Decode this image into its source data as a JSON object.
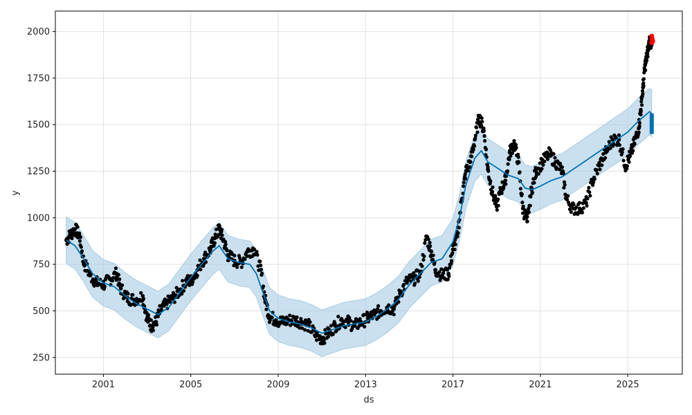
{
  "chart_data": {
    "type": "line",
    "title": "",
    "xlabel": "ds",
    "ylabel": "y",
    "xlim": [
      1998.8,
      2027.5
    ],
    "ylim": [
      160,
      2110
    ],
    "grid": true,
    "legend": "none",
    "x_ticks": [
      {
        "label": "2001",
        "value": 2001
      },
      {
        "label": "2005",
        "value": 2005
      },
      {
        "label": "2009",
        "value": 2009
      },
      {
        "label": "2013",
        "value": 2013
      },
      {
        "label": "2017",
        "value": 2017
      },
      {
        "label": "2021",
        "value": 2021
      },
      {
        "label": "2025",
        "value": 2025
      }
    ],
    "y_ticks": [
      {
        "label": "250",
        "value": 250
      },
      {
        "label": "500",
        "value": 500
      },
      {
        "label": "750",
        "value": 750
      },
      {
        "label": "1000",
        "value": 1000
      },
      {
        "label": "1250",
        "value": 1250
      },
      {
        "label": "1500",
        "value": 1500
      },
      {
        "label": "1750",
        "value": 1750
      },
      {
        "label": "2000",
        "value": 2000
      }
    ],
    "colors": {
      "observed": "#000000",
      "forecast_line": "#0072B2",
      "uncertainty_band": "#a6cbe3",
      "future_forecast": "#0072B2",
      "actual_future": "#ff0000",
      "grid": "#e0e0e0"
    },
    "series": [
      {
        "role": "observed",
        "points": [
          [
            1999.3,
            880
          ],
          [
            1999.5,
            910
          ],
          [
            1999.7,
            940
          ],
          [
            1999.9,
            905
          ],
          [
            2000.1,
            760
          ],
          [
            2000.4,
            690
          ],
          [
            2000.7,
            650
          ],
          [
            2001.0,
            640
          ],
          [
            2001.3,
            670
          ],
          [
            2001.6,
            700
          ],
          [
            2001.8,
            620
          ],
          [
            2002.1,
            570
          ],
          [
            2002.4,
            560
          ],
          [
            2002.8,
            580
          ],
          [
            2003.0,
            460
          ],
          [
            2003.2,
            420
          ],
          [
            2003.4,
            440
          ],
          [
            2003.6,
            500
          ],
          [
            2003.9,
            540
          ],
          [
            2004.2,
            570
          ],
          [
            2004.5,
            610
          ],
          [
            2004.8,
            660
          ],
          [
            2005.0,
            660
          ],
          [
            2005.3,
            720
          ],
          [
            2005.6,
            780
          ],
          [
            2005.9,
            830
          ],
          [
            2006.1,
            890
          ],
          [
            2006.3,
            940
          ],
          [
            2006.5,
            880
          ],
          [
            2006.7,
            800
          ],
          [
            2007.0,
            770
          ],
          [
            2007.3,
            760
          ],
          [
            2007.6,
            820
          ],
          [
            2007.9,
            830
          ],
          [
            2008.2,
            720
          ],
          [
            2008.4,
            560
          ],
          [
            2008.6,
            470
          ],
          [
            2008.9,
            450
          ],
          [
            2009.2,
            440
          ],
          [
            2009.5,
            450
          ],
          [
            2009.8,
            450
          ],
          [
            2010.1,
            440
          ],
          [
            2010.4,
            420
          ],
          [
            2010.7,
            370
          ],
          [
            2011.0,
            350
          ],
          [
            2011.3,
            380
          ],
          [
            2011.6,
            420
          ],
          [
            2011.9,
            450
          ],
          [
            2012.2,
            440
          ],
          [
            2012.5,
            420
          ],
          [
            2012.8,
            440
          ],
          [
            2013.1,
            460
          ],
          [
            2013.4,
            480
          ],
          [
            2013.7,
            500
          ],
          [
            2014.0,
            520
          ],
          [
            2014.3,
            510
          ],
          [
            2014.6,
            600
          ],
          [
            2014.9,
            660
          ],
          [
            2015.2,
            670
          ],
          [
            2015.5,
            700
          ],
          [
            2015.8,
            900
          ],
          [
            2016.0,
            820
          ],
          [
            2016.2,
            720
          ],
          [
            2016.5,
            690
          ],
          [
            2016.8,
            700
          ],
          [
            2017.0,
            830
          ],
          [
            2017.2,
            900
          ],
          [
            2017.4,
            1100
          ],
          [
            2017.6,
            1250
          ],
          [
            2017.8,
            1300
          ],
          [
            2018.0,
            1420
          ],
          [
            2018.2,
            1540
          ],
          [
            2018.4,
            1480
          ],
          [
            2018.6,
            1260
          ],
          [
            2018.8,
            1140
          ],
          [
            2019.0,
            1060
          ],
          [
            2019.2,
            1150
          ],
          [
            2019.4,
            1200
          ],
          [
            2019.6,
            1350
          ],
          [
            2019.8,
            1400
          ],
          [
            2020.0,
            1300
          ],
          [
            2020.2,
            1050
          ],
          [
            2020.4,
            980
          ],
          [
            2020.6,
            1150
          ],
          [
            2020.8,
            1250
          ],
          [
            2021.1,
            1300
          ],
          [
            2021.4,
            1340
          ],
          [
            2021.7,
            1300
          ],
          [
            2022.0,
            1250
          ],
          [
            2022.2,
            1100
          ],
          [
            2022.5,
            1050
          ],
          [
            2022.8,
            1050
          ],
          [
            2023.1,
            1080
          ],
          [
            2023.4,
            1200
          ],
          [
            2023.7,
            1280
          ],
          [
            2024.0,
            1350
          ],
          [
            2024.3,
            1420
          ],
          [
            2024.6,
            1420
          ],
          [
            2024.9,
            1280
          ],
          [
            2025.1,
            1330
          ],
          [
            2025.3,
            1400
          ],
          [
            2025.5,
            1480
          ],
          [
            2025.6,
            1580
          ],
          [
            2025.7,
            1700
          ],
          [
            2025.8,
            1820
          ],
          [
            2025.9,
            1880
          ],
          [
            2026.0,
            1950
          ],
          [
            2026.1,
            1930
          ]
        ]
      },
      {
        "role": "forecast",
        "points": [
          [
            1999.3,
            880
          ],
          [
            1999.7,
            850
          ],
          [
            2000.1,
            780
          ],
          [
            2000.5,
            700
          ],
          [
            2001.0,
            650
          ],
          [
            2001.5,
            630
          ],
          [
            2002.0,
            580
          ],
          [
            2002.5,
            540
          ],
          [
            2003.0,
            510
          ],
          [
            2003.5,
            480
          ],
          [
            2004.0,
            520
          ],
          [
            2004.5,
            600
          ],
          [
            2005.0,
            680
          ],
          [
            2005.5,
            750
          ],
          [
            2006.0,
            820
          ],
          [
            2006.3,
            850
          ],
          [
            2006.7,
            780
          ],
          [
            2007.2,
            760
          ],
          [
            2007.7,
            750
          ],
          [
            2008.0,
            700
          ],
          [
            2008.3,
            600
          ],
          [
            2008.6,
            500
          ],
          [
            2009.0,
            460
          ],
          [
            2009.5,
            440
          ],
          [
            2010.0,
            430
          ],
          [
            2010.5,
            410
          ],
          [
            2011.0,
            380
          ],
          [
            2011.5,
            400
          ],
          [
            2012.0,
            420
          ],
          [
            2012.5,
            430
          ],
          [
            2013.0,
            440
          ],
          [
            2013.5,
            470
          ],
          [
            2014.0,
            510
          ],
          [
            2014.5,
            560
          ],
          [
            2015.0,
            640
          ],
          [
            2015.5,
            700
          ],
          [
            2016.0,
            760
          ],
          [
            2016.5,
            780
          ],
          [
            2017.0,
            870
          ],
          [
            2017.3,
            1000
          ],
          [
            2017.6,
            1180
          ],
          [
            2018.0,
            1320
          ],
          [
            2018.3,
            1360
          ],
          [
            2018.6,
            1300
          ],
          [
            2019.0,
            1270
          ],
          [
            2019.5,
            1230
          ],
          [
            2020.0,
            1210
          ],
          [
            2020.3,
            1160
          ],
          [
            2020.6,
            1150
          ],
          [
            2021.0,
            1170
          ],
          [
            2021.5,
            1200
          ],
          [
            2022.0,
            1220
          ],
          [
            2022.5,
            1260
          ],
          [
            2023.0,
            1300
          ],
          [
            2023.5,
            1340
          ],
          [
            2024.0,
            1380
          ],
          [
            2024.5,
            1420
          ],
          [
            2025.0,
            1460
          ],
          [
            2025.5,
            1520
          ],
          [
            2026.0,
            1570
          ],
          [
            2026.1,
            1560
          ]
        ],
        "band": 125
      },
      {
        "role": "future_forecast",
        "points": [
          [
            2026.1,
            1450
          ],
          [
            2026.1,
            1560
          ]
        ]
      },
      {
        "role": "actual_future",
        "points": [
          [
            2026.1,
            1940
          ],
          [
            2026.12,
            1960
          ],
          [
            2026.14,
            1950
          ],
          [
            2026.1,
            1975
          ],
          [
            2026.13,
            1945
          ]
        ]
      }
    ]
  }
}
